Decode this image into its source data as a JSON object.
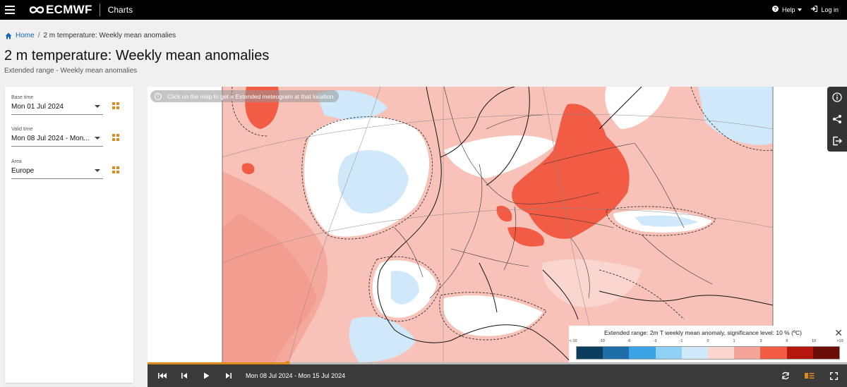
{
  "header": {
    "logo_text": "ECMWF",
    "app_name": "Charts",
    "help_label": "Help",
    "login_label": "Log in"
  },
  "breadcrumb": {
    "home": "Home",
    "current": "2 m temperature: Weekly mean anomalies"
  },
  "page": {
    "title": "2 m temperature: Weekly mean anomalies",
    "subtitle": "Extended range - Weekly mean anomalies"
  },
  "controls": [
    {
      "label": "Base time",
      "value": "Mon 01 Jul 2024"
    },
    {
      "label": "Valid time",
      "value": "Mon 08 Jul 2024 - Mon..."
    },
    {
      "label": "Area",
      "value": "Europe"
    }
  ],
  "map": {
    "tip": "Click on the map to get a Extended meteogram at that location",
    "side_tools": [
      "info-icon",
      "share-icon",
      "export-icon"
    ]
  },
  "legend": {
    "title": "Extended range: 2m T weekly mean anomaly, significance level: 10 % (ºC)",
    "ticks": [
      "<-10",
      "-10",
      "-6",
      "-3",
      "-1",
      "0",
      "1",
      "3",
      "6",
      "10",
      ">10"
    ],
    "colors": [
      "#0a3d5e",
      "#1e6fa8",
      "#3aa3e6",
      "#8fd0f5",
      "#cfe9fb",
      "#fbd5d0",
      "#f5a49a",
      "#f25c45",
      "#b5170d",
      "#6b0c08"
    ]
  },
  "playback": {
    "date_range": "Mon 08 Jul 2024 - Mon 15 Jul 2024",
    "progress": 0.2
  },
  "colors": {
    "accent": "#e08a1e",
    "link": "#1565c0",
    "topbar": "#000000",
    "playbar": "#3a3a3a"
  }
}
